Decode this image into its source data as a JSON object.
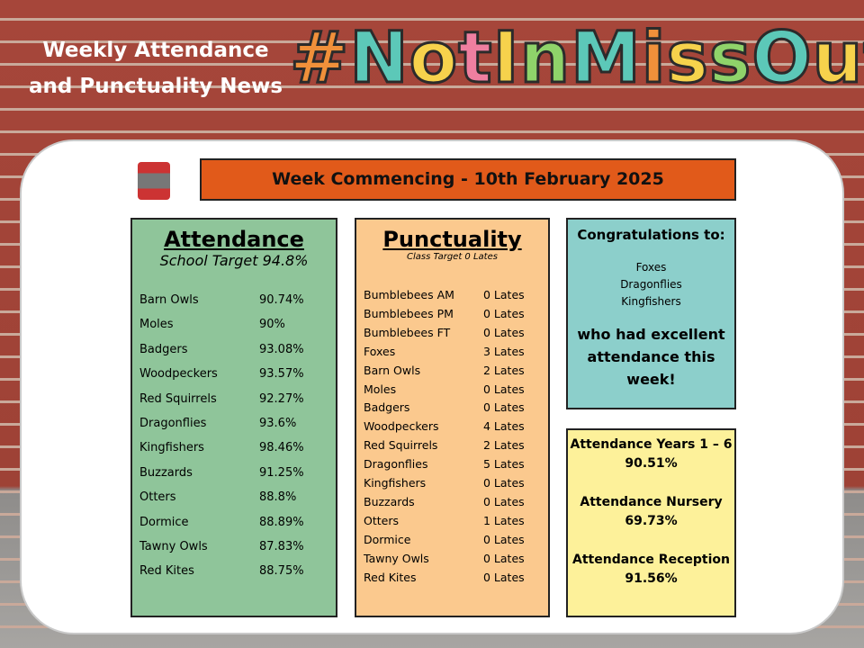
{
  "header": {
    "title_line1": "Weekly Attendance",
    "title_line2": "and Punctuality News",
    "hashtag": "#NotInMissOut"
  },
  "week": "Week Commencing - 10th February 2025",
  "attendance": {
    "title": "Attendance",
    "target": "School Target 94.8%",
    "rows": [
      [
        "Barn Owls",
        "90.74%"
      ],
      [
        "Moles",
        "90%"
      ],
      [
        "Badgers",
        "93.08%"
      ],
      [
        "Woodpeckers",
        "93.57%"
      ],
      [
        "Red Squirrels",
        "92.27%"
      ],
      [
        "Dragonflies",
        "93.6%"
      ],
      [
        "Kingfishers",
        "98.46%"
      ],
      [
        "Buzzards",
        "91.25%"
      ],
      [
        "Otters",
        "88.8%"
      ],
      [
        "Dormice",
        "88.89%"
      ],
      [
        "Tawny Owls",
        "87.83%"
      ],
      [
        "Red Kites",
        "88.75%"
      ]
    ]
  },
  "punctuality": {
    "title": "Punctuality",
    "target": "Class Target 0 Lates",
    "rows": [
      [
        "Bumblebees AM",
        "0 Lates"
      ],
      [
        "Bumblebees PM",
        "0 Lates"
      ],
      [
        "Bumblebees FT",
        "0 Lates"
      ],
      [
        "Foxes",
        "3 Lates"
      ],
      [
        "Barn Owls",
        "2 Lates"
      ],
      [
        "Moles",
        "0 Lates"
      ],
      [
        "Badgers",
        "0 Lates"
      ],
      [
        "Woodpeckers",
        "4 Lates"
      ],
      [
        "Red Squirrels",
        "2 Lates"
      ],
      [
        "Dragonflies",
        "5 Lates"
      ],
      [
        "Kingfishers",
        "0 Lates"
      ],
      [
        "Buzzards",
        "0 Lates"
      ],
      [
        "Otters",
        "1 Lates"
      ],
      [
        "Dormice",
        "0 Lates"
      ],
      [
        "Tawny Owls",
        "0 Lates"
      ],
      [
        "Red Kites",
        "0 Lates"
      ]
    ]
  },
  "congrats": {
    "title": "Congratulations to:",
    "classes": [
      "Foxes",
      "Dragonflies",
      "Kingfishers"
    ],
    "message": "who had excellent attendance this week!"
  },
  "summary": [
    {
      "label": "Attendance Years 1 – 6",
      "value": "90.51%"
    },
    {
      "label": "Attendance Nursery",
      "value": "69.73%"
    },
    {
      "label": "Attendance Reception",
      "value": "91.56%"
    }
  ]
}
